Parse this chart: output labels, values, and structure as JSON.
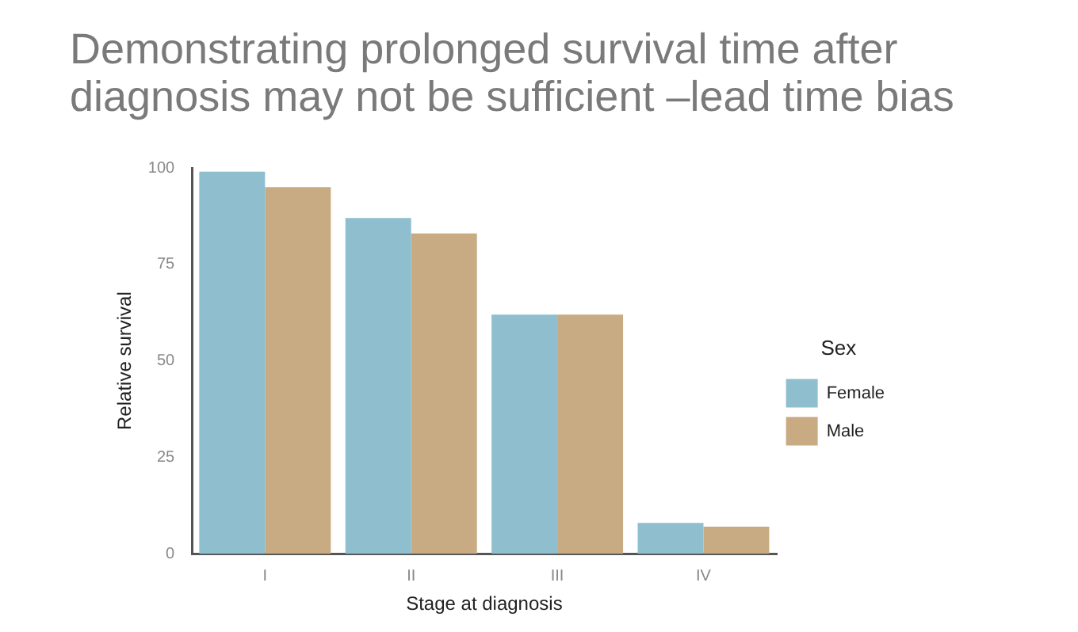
{
  "chart_data": {
    "type": "bar",
    "title": "Demonstrating prolonged survival time after diagnosis may not be sufficient –lead time bias",
    "xlabel": "Stage at diagnosis",
    "ylabel": "Relative survival",
    "legend_title": "Sex",
    "categories": [
      "I",
      "II",
      "III",
      "IV"
    ],
    "series": [
      {
        "name": "Female",
        "color": "#8fbfcf",
        "values": [
          99,
          87,
          62,
          8
        ]
      },
      {
        "name": "Male",
        "color": "#c8ab82",
        "values": [
          95,
          83,
          62,
          7
        ]
      }
    ],
    "ylim": [
      0,
      100
    ],
    "yticks": [
      0,
      25,
      50,
      75,
      100
    ],
    "grid": false,
    "legend": "right"
  }
}
